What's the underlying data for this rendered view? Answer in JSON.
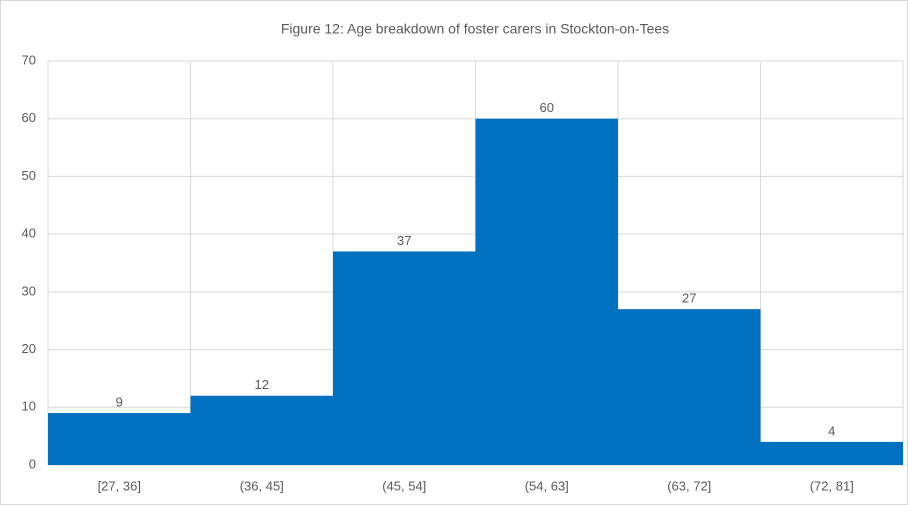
{
  "chart_data": {
    "type": "bar",
    "title": "Figure 12: Age breakdown of foster carers in Stockton-on-Tees",
    "categories": [
      "[27, 36]",
      "(36, 45]",
      "(45, 54]",
      "(54, 63]",
      "(63, 72]",
      "(72, 81]"
    ],
    "values": [
      9,
      12,
      37,
      60,
      27,
      4
    ],
    "color": "#0070c0",
    "ylim": [
      0,
      70
    ],
    "yticks": [
      0,
      10,
      20,
      30,
      40,
      50,
      60,
      70
    ],
    "grid": true
  }
}
